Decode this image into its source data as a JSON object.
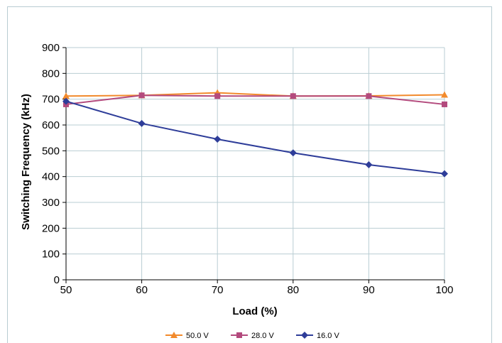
{
  "chart_data": {
    "type": "line",
    "xlabel": "Load (%)",
    "ylabel": "Switching Frequency (kHz)",
    "x": [
      50,
      60,
      70,
      80,
      90,
      100
    ],
    "xlim": [
      50,
      100
    ],
    "ylim": [
      0,
      900
    ],
    "x_ticks": [
      "50",
      "60",
      "70",
      "80",
      "90",
      "100"
    ],
    "y_ticks": [
      "0",
      "100",
      "200",
      "300",
      "400",
      "500",
      "600",
      "700",
      "800",
      "900"
    ],
    "grid": true,
    "legend_position": "bottom",
    "series": [
      {
        "name": "50.0 V",
        "color": "#f28a2c",
        "marker": "triangle",
        "values": [
          712,
          715,
          725,
          712,
          713,
          717
        ]
      },
      {
        "name": "28.0 V",
        "color": "#b34a7d",
        "marker": "square",
        "values": [
          680,
          715,
          712,
          712,
          712,
          680
        ]
      },
      {
        "name": "16.0 V",
        "color": "#2e3d99",
        "marker": "diamond",
        "values": [
          692,
          606,
          545,
          492,
          446,
          411
        ]
      }
    ]
  }
}
